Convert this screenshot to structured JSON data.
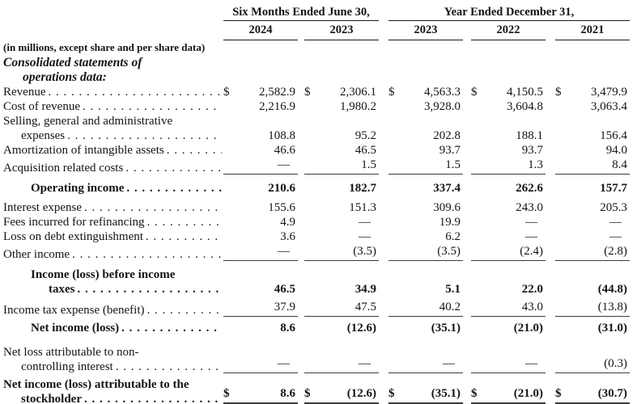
{
  "table": {
    "currency_symbol": "$",
    "dash": "—",
    "header": {
      "group1": "Six Months Ended June 30,",
      "group2": "Year Ended December 31,",
      "columns": [
        "2024",
        "2023",
        "2023",
        "2022",
        "2021"
      ]
    },
    "units_note": "(in millions, except share and per share data)",
    "section_heading": {
      "line1": "Consolidated statements of",
      "line2": "operations data:"
    },
    "rows": [
      {
        "label": "Revenue",
        "dollar": true,
        "values": [
          "2,582.9",
          "2,306.1",
          "4,563.3",
          "4,150.5",
          "3,479.9"
        ]
      },
      {
        "label": "Cost of revenue",
        "values": [
          "2,216.9",
          "1,980.2",
          "3,928.0",
          "3,604.8",
          "3,063.4"
        ]
      },
      {
        "label": "Selling, general and administrative",
        "label2": "expenses",
        "values": [
          "108.8",
          "95.2",
          "202.8",
          "188.1",
          "156.4"
        ]
      },
      {
        "label": "Amortization of intangible assets",
        "values": [
          "46.6",
          "46.5",
          "93.7",
          "93.7",
          "94.0"
        ]
      },
      {
        "label": "Acquisition related costs",
        "rule": "single",
        "values": [
          "—",
          "1.5",
          "1.5",
          "1.3",
          "8.4"
        ]
      },
      {
        "label": "Operating income",
        "bold": true,
        "indent": true,
        "space_before": "sb7",
        "space_after": "sa6",
        "values": [
          "210.6",
          "182.7",
          "337.4",
          "262.6",
          "157.7"
        ]
      },
      {
        "label": "Interest expense",
        "values": [
          "155.6",
          "151.3",
          "309.6",
          "243.0",
          "205.3"
        ]
      },
      {
        "label": "Fees incurred for refinancing",
        "values": [
          "4.9",
          "—",
          "19.9",
          "—",
          "—"
        ]
      },
      {
        "label": "Loss on debt extinguishment",
        "values": [
          "3.6",
          "—",
          "6.2",
          "—",
          "—"
        ]
      },
      {
        "label": "Other income",
        "rule": "single",
        "values": [
          "—",
          "(3.5)",
          "(3.5)",
          "(2.4)",
          "(2.8)"
        ]
      },
      {
        "label": "Income (loss) before income",
        "label2": "taxes",
        "bold": true,
        "indent": true,
        "space_before": "sb7",
        "values": [
          "46.5",
          "34.9",
          "5.1",
          "22.0",
          "(44.8)"
        ]
      },
      {
        "label": "Income tax expense (benefit)",
        "rule": "single",
        "space_before": "sb4",
        "values": [
          "37.9",
          "47.5",
          "40.2",
          "43.0",
          "(13.8)"
        ]
      },
      {
        "label": "Net income (loss)",
        "bold": true,
        "indent": true,
        "space_before": "sb4",
        "values": [
          "8.6",
          "(12.6)",
          "(35.1)",
          "(21.0)",
          "(31.0)"
        ]
      },
      {
        "label": "Net loss attributable to non-",
        "label2": "controlling interest",
        "rule": "single",
        "space_before": "sb12",
        "values": [
          "—",
          "—",
          "—",
          "—",
          "(0.3)"
        ]
      },
      {
        "label": "Net income (loss) attributable to the",
        "label2": "stockholder",
        "bold": true,
        "dollar": true,
        "rule": "double",
        "space_before": "sb4",
        "values": [
          "8.6",
          "(12.6)",
          "(35.1)",
          "(21.0)",
          "(30.7)"
        ]
      }
    ]
  }
}
